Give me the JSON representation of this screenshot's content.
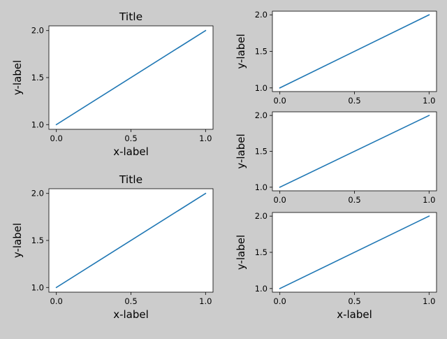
{
  "colors": {
    "figure_background": "#cccccc",
    "axes_background": "#ffffff",
    "line": "#1f77b4",
    "spine": "#000000"
  },
  "chart_data": [
    {
      "type": "line",
      "title": "Title",
      "xlabel": "x-label",
      "ylabel": "y-label",
      "xlim": [
        -0.05,
        1.05
      ],
      "ylim": [
        0.95,
        2.05
      ],
      "xticks": [
        0.0,
        0.5,
        1.0
      ],
      "xtick_labels": [
        "0.0",
        "0.5",
        "1.0"
      ],
      "yticks": [
        1.0,
        1.5,
        2.0
      ],
      "ytick_labels": [
        "1.0",
        "1.5",
        "2.0"
      ],
      "grid": false,
      "series": [
        {
          "x": [
            0,
            1
          ],
          "y": [
            1,
            2
          ]
        }
      ]
    },
    {
      "type": "line",
      "title": "",
      "xlabel": "",
      "ylabel": "y-label",
      "xlim": [
        -0.05,
        1.05
      ],
      "ylim": [
        0.95,
        2.05
      ],
      "xticks": [
        0.0,
        0.5,
        1.0
      ],
      "xtick_labels": [
        "0.0",
        "0.5",
        "1.0"
      ],
      "yticks": [
        1.0,
        1.5,
        2.0
      ],
      "ytick_labels": [
        "1.0",
        "1.5",
        "2.0"
      ],
      "grid": false,
      "series": [
        {
          "x": [
            0,
            1
          ],
          "y": [
            1,
            2
          ]
        }
      ]
    },
    {
      "type": "line",
      "title": "",
      "xlabel": "",
      "ylabel": "y-label",
      "xlim": [
        -0.05,
        1.05
      ],
      "ylim": [
        0.95,
        2.05
      ],
      "xticks": [
        0.0,
        0.5,
        1.0
      ],
      "xtick_labels": [
        "0.0",
        "0.5",
        "1.0"
      ],
      "yticks": [
        1.0,
        1.5,
        2.0
      ],
      "ytick_labels": [
        "1.0",
        "1.5",
        "2.0"
      ],
      "grid": false,
      "series": [
        {
          "x": [
            0,
            1
          ],
          "y": [
            1,
            2
          ]
        }
      ]
    },
    {
      "type": "line",
      "title": "Title",
      "xlabel": "x-label",
      "ylabel": "y-label",
      "xlim": [
        -0.05,
        1.05
      ],
      "ylim": [
        0.95,
        2.05
      ],
      "xticks": [
        0.0,
        0.5,
        1.0
      ],
      "xtick_labels": [
        "0.0",
        "0.5",
        "1.0"
      ],
      "yticks": [
        1.0,
        1.5,
        2.0
      ],
      "ytick_labels": [
        "1.0",
        "1.5",
        "2.0"
      ],
      "grid": false,
      "series": [
        {
          "x": [
            0,
            1
          ],
          "y": [
            1,
            2
          ]
        }
      ]
    },
    {
      "type": "line",
      "title": "",
      "xlabel": "x-label",
      "ylabel": "y-label",
      "xlim": [
        -0.05,
        1.05
      ],
      "ylim": [
        0.95,
        2.05
      ],
      "xticks": [
        0.0,
        0.5,
        1.0
      ],
      "xtick_labels": [
        "0.0",
        "0.5",
        "1.0"
      ],
      "yticks": [
        1.0,
        1.5,
        2.0
      ],
      "ytick_labels": [
        "1.0",
        "1.5",
        "2.0"
      ],
      "grid": false,
      "series": [
        {
          "x": [
            0,
            1
          ],
          "y": [
            1,
            2
          ]
        }
      ]
    }
  ]
}
